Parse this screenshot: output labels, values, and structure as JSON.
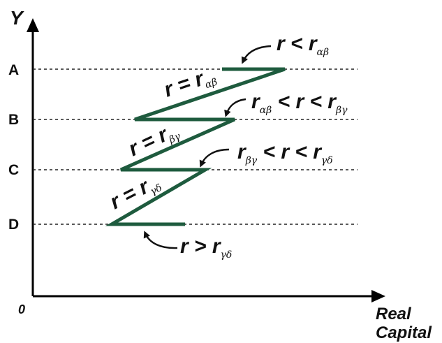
{
  "axes": {
    "y_label": "Y",
    "x_label_line1": "Real",
    "x_label_line2": "Capital",
    "origin_label": "0"
  },
  "levels": [
    "A",
    "B",
    "C",
    "D"
  ],
  "zigzag_labels": [
    {
      "main": "r = r",
      "sub": "αβ"
    },
    {
      "main": "r = r",
      "sub": "βγ"
    },
    {
      "main": "r = r",
      "sub": "γδ"
    }
  ],
  "annotations": [
    {
      "parts": [
        {
          "t": "r < r"
        },
        {
          "sub": "αβ"
        }
      ]
    },
    {
      "parts": [
        {
          "t": "r"
        },
        {
          "sub": "αβ"
        },
        {
          "t": " < r < r"
        },
        {
          "sub": "βγ"
        }
      ]
    },
    {
      "parts": [
        {
          "t": "r"
        },
        {
          "sub": "βγ"
        },
        {
          "t": " < r < r"
        },
        {
          "sub": "γδ"
        }
      ]
    },
    {
      "parts": [
        {
          "t": "r > r"
        },
        {
          "sub": "γδ"
        }
      ]
    }
  ],
  "colors": {
    "zigzag": "#1e5b3e",
    "axis": "#000000"
  }
}
